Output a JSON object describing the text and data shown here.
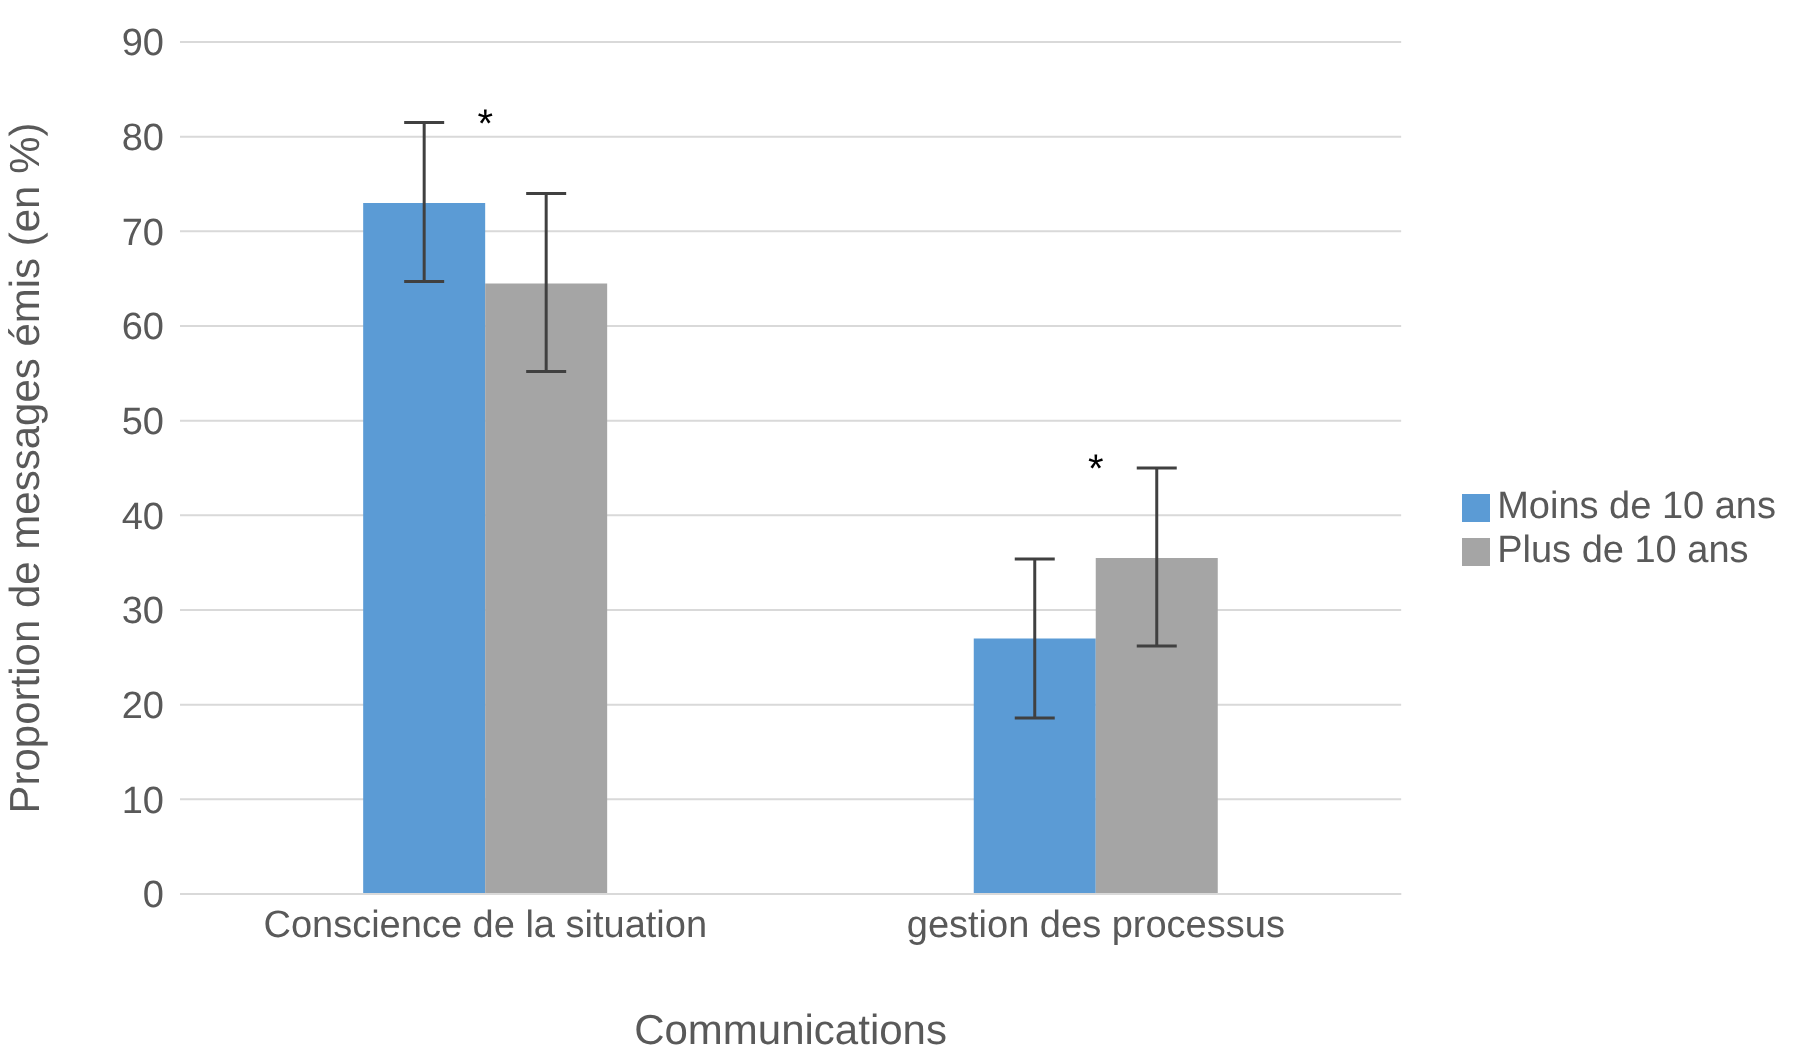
{
  "chart_data": {
    "type": "bar",
    "xlabel": "Communications",
    "ylabel": "Proportion de messages émis (en %)",
    "categories": [
      "Conscience de la situation",
      "gestion des processus"
    ],
    "series": [
      {
        "name": "Moins de 10 ans",
        "color": "#5b9bd5",
        "values": [
          73,
          27
        ],
        "errors": [
          [
            64.7,
            81.5
          ],
          [
            18.6,
            35.4
          ]
        ]
      },
      {
        "name": "Plus de 10 ans",
        "color": "#a5a5a5",
        "values": [
          64.5,
          35.5
        ],
        "errors": [
          [
            55.2,
            74
          ],
          [
            26.2,
            45
          ]
        ]
      }
    ],
    "ylim": [
      0,
      90
    ],
    "yticks": [
      0,
      10,
      20,
      30,
      40,
      50,
      60,
      70,
      80,
      90
    ],
    "grid": "y",
    "legend": "right",
    "annotations": [
      "*",
      "*"
    ]
  }
}
